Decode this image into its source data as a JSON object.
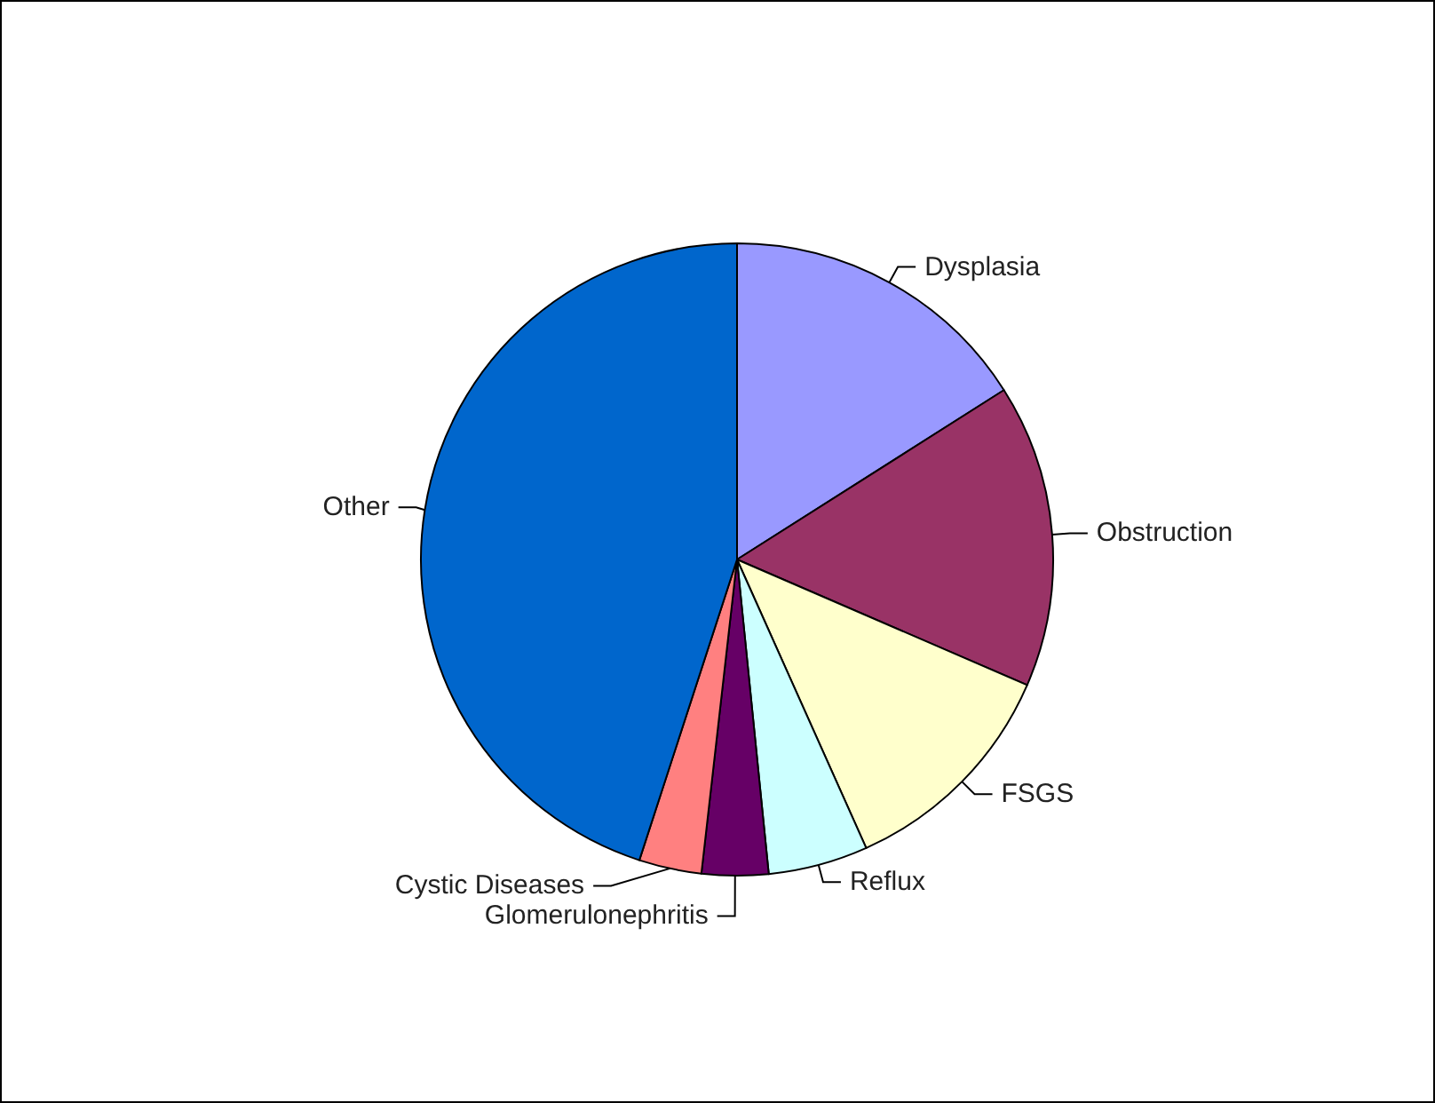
{
  "chart_data": {
    "type": "pie",
    "categories": [
      "Dysplasia",
      "Obstruction",
      "FSGS",
      "Reflux",
      "Glomerulonephritis",
      "Cystic Diseases",
      "Other"
    ],
    "values": [
      16,
      15.5,
      11.8,
      5.1,
      3.4,
      3.2,
      45
    ],
    "colors": [
      "#9999ff",
      "#993366",
      "#ffffcc",
      "#ccffff",
      "#660066",
      "#ff8080",
      "#0066cc"
    ],
    "legend": false
  }
}
